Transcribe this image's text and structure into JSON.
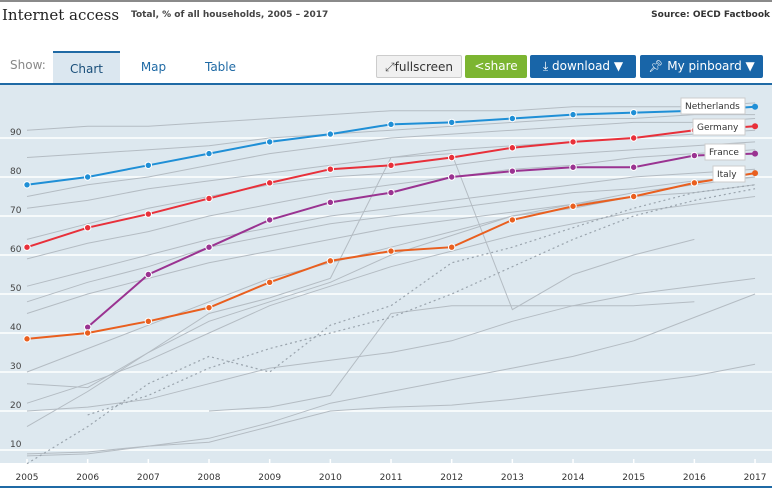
{
  "header": {
    "title": "Internet access",
    "subtitle": "Total, % of all households, 2005 – 2017",
    "source": "Source: OECD Factbook"
  },
  "toolbar": {
    "show_label": "Show:",
    "tabs": [
      "Chart",
      "Map",
      "Table"
    ],
    "active_tab": "Chart",
    "fullscreen": "fullscreen",
    "share": "share",
    "download": "download ▼",
    "pinboard": "My pinboard ▼"
  },
  "colors": {
    "Netherlands": "#1f8fd6",
    "Germany": "#e8303a",
    "France": "#9a3391",
    "Italy": "#e95f1f",
    "other": "#b4bcc3",
    "plot_bg": "#dde8ef"
  },
  "chart_data": {
    "type": "line",
    "title": "",
    "xlabel": "",
    "ylabel": "",
    "ylim": [
      6.7,
      103
    ],
    "grid": true,
    "x": [
      2005,
      2006,
      2007,
      2008,
      2009,
      2010,
      2011,
      2012,
      2013,
      2014,
      2015,
      2016,
      2017
    ],
    "yticks": [
      10,
      20,
      30,
      40,
      50,
      60,
      70,
      80,
      90
    ],
    "series": [
      {
        "name": "Netherlands",
        "values": [
          78,
          80,
          83,
          86,
          89,
          91,
          93.5,
          94,
          95,
          96,
          96.5,
          97,
          98
        ]
      },
      {
        "name": "Germany",
        "values": [
          62,
          67,
          70.5,
          74.5,
          78.5,
          82,
          83,
          85,
          87.5,
          89,
          90,
          92,
          93
        ]
      },
      {
        "name": "France",
        "values": [
          null,
          41.5,
          55,
          62,
          69,
          73.5,
          76,
          80,
          81.5,
          82.5,
          82.5,
          85.5,
          86
        ]
      },
      {
        "name": "Italy",
        "values": [
          38.5,
          40,
          43,
          46.5,
          53,
          58.5,
          61,
          62,
          69,
          72.5,
          75,
          78.5,
          81
        ]
      }
    ],
    "other_series": [
      [
        92,
        93,
        93,
        94,
        95,
        96,
        97,
        97,
        97,
        98,
        98,
        98,
        99
      ],
      [
        85,
        86,
        87,
        88,
        90,
        91,
        92,
        93,
        94,
        95,
        95,
        96,
        96
      ],
      [
        75,
        78,
        80,
        83,
        86,
        88,
        90,
        91,
        92,
        93,
        94,
        94,
        95
      ],
      [
        72,
        74,
        77,
        79,
        81,
        83,
        85,
        87,
        88,
        89,
        90,
        91,
        92
      ],
      [
        64,
        68,
        72,
        75,
        78,
        80,
        81,
        83,
        85,
        86,
        87,
        88,
        89
      ],
      [
        59,
        63,
        66,
        70,
        73,
        76,
        78,
        80,
        82,
        83,
        85,
        86,
        87
      ],
      [
        52,
        56,
        60,
        64,
        67,
        70,
        72,
        74,
        76,
        78,
        80,
        81,
        82
      ],
      [
        48,
        53,
        57,
        62,
        65,
        68,
        70,
        72,
        74,
        76,
        77,
        79,
        80
      ],
      [
        45,
        50,
        54,
        58,
        61,
        64,
        67,
        69,
        71,
        73,
        75,
        76,
        78
      ],
      [
        30,
        36,
        42,
        48,
        54,
        58,
        62,
        66,
        70,
        73,
        76,
        78,
        80
      ],
      [
        22,
        27,
        33,
        40,
        47,
        52,
        57,
        61,
        65,
        68,
        71,
        73,
        75
      ],
      [
        16,
        25,
        35,
        43,
        48,
        53,
        60,
        65,
        70,
        72,
        75,
        null,
        null
      ],
      [
        20,
        21,
        23,
        27,
        31,
        33,
        35,
        38,
        43,
        47,
        50,
        52,
        54
      ],
      [
        9,
        9.5,
        11,
        13,
        17,
        22,
        25,
        28,
        31,
        34,
        38,
        44,
        50
      ],
      [
        8.5,
        9,
        11,
        12,
        16,
        20,
        21,
        21.5,
        23,
        25,
        27,
        29,
        32
      ],
      [
        null,
        null,
        null,
        20,
        21,
        24,
        45,
        47,
        47,
        47,
        47,
        48,
        null
      ],
      [
        27,
        26,
        35,
        45,
        49,
        54,
        85,
        86,
        46,
        55,
        60,
        64,
        null
      ]
    ],
    "dashed_series": [
      [
        6.5,
        16,
        27,
        34,
        30,
        42,
        47,
        58,
        62,
        67,
        72,
        76,
        78
      ],
      [
        null,
        19,
        24,
        31,
        36,
        40,
        44,
        50,
        57,
        64,
        70,
        74,
        77
      ]
    ]
  }
}
